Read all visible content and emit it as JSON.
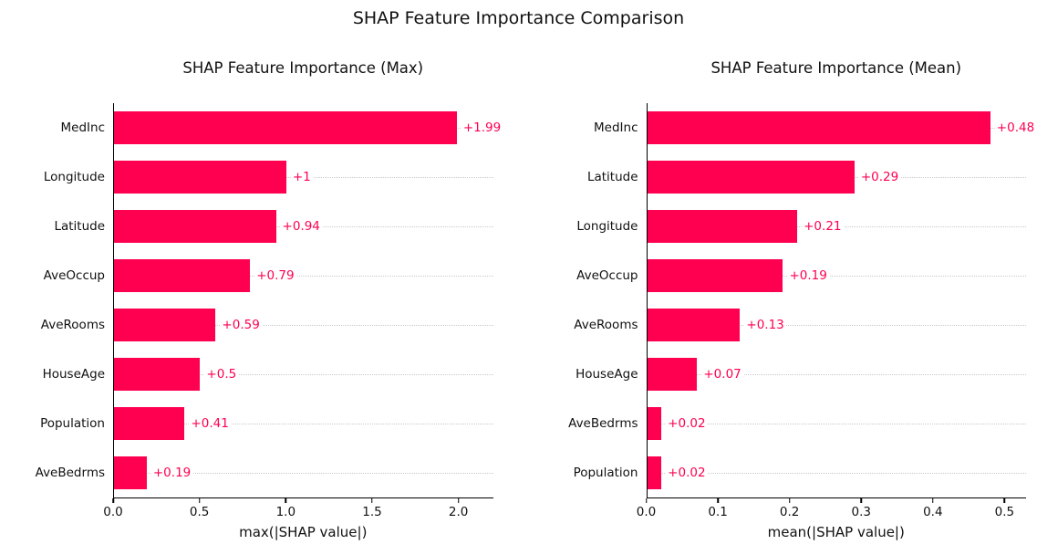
{
  "figure_title": "SHAP Feature Importance Comparison",
  "colors": {
    "bar": "#ff0051",
    "value_label": "#ff0051",
    "gridline": "#c9c9c9",
    "axis": "#000000",
    "background": "#ffffff",
    "text": "#111111"
  },
  "chart_data": [
    {
      "type": "bar",
      "orientation": "horizontal",
      "title": "SHAP Feature Importance (Max)",
      "xlabel": "max(|SHAP value|)",
      "categories": [
        "MedInc",
        "Longitude",
        "Latitude",
        "AveOccup",
        "AveRooms",
        "HouseAge",
        "Population",
        "AveBedrms"
      ],
      "values": [
        1.99,
        1.0,
        0.94,
        0.79,
        0.59,
        0.5,
        0.41,
        0.19
      ],
      "value_labels": [
        "+1.99",
        "+1",
        "+0.94",
        "+0.79",
        "+0.59",
        "+0.5",
        "+0.41",
        "+0.19"
      ],
      "xticks": [
        0.0,
        0.5,
        1.0,
        1.5,
        2.0
      ],
      "xtick_labels": [
        "0.0",
        "0.5",
        "1.0",
        "1.5",
        "2.0"
      ],
      "xlim": [
        0,
        2.2
      ],
      "grid": "horizontal-dotted",
      "legend": null
    },
    {
      "type": "bar",
      "orientation": "horizontal",
      "title": "SHAP Feature Importance (Mean)",
      "xlabel": "mean(|SHAP value|)",
      "categories": [
        "MedInc",
        "Latitude",
        "Longitude",
        "AveOccup",
        "AveRooms",
        "HouseAge",
        "AveBedrms",
        "Population"
      ],
      "values": [
        0.48,
        0.29,
        0.21,
        0.19,
        0.13,
        0.07,
        0.02,
        0.02
      ],
      "value_labels": [
        "+0.48",
        "+0.29",
        "+0.21",
        "+0.19",
        "+0.13",
        "+0.07",
        "+0.02",
        "+0.02"
      ],
      "xticks": [
        0.0,
        0.1,
        0.2,
        0.3,
        0.4,
        0.5
      ],
      "xtick_labels": [
        "0.0",
        "0.1",
        "0.2",
        "0.3",
        "0.4",
        "0.5"
      ],
      "xlim": [
        0,
        0.53
      ],
      "grid": "horizontal-dotted",
      "legend": null
    }
  ]
}
